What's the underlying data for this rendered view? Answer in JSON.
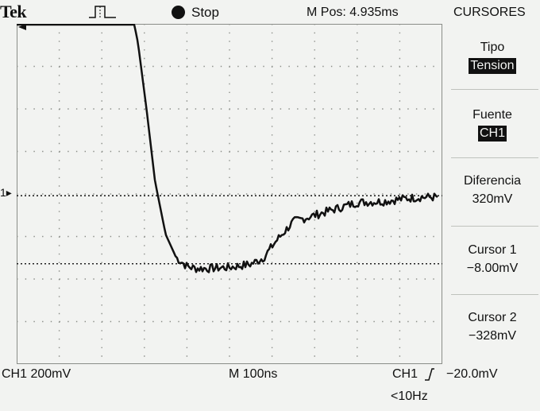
{
  "header": {
    "brand": "Tek",
    "status": "Stop",
    "m_pos": "M Pos: 4.935ms",
    "menu_title": "CURSORES"
  },
  "screen_markers": {
    "channel_marker": "1"
  },
  "side_menu": {
    "tipo": {
      "label": "Tipo",
      "value": "Tension"
    },
    "fuente": {
      "label": "Fuente",
      "value": "CH1"
    },
    "diferencia": {
      "label": "Diferencia",
      "value": "320mV"
    },
    "cursor1": {
      "label": "Cursor 1",
      "value": "−8.00mV"
    },
    "cursor2": {
      "label": "Cursor 2",
      "value": "−328mV"
    }
  },
  "footer": {
    "ch1_scale": "CH1  200mV",
    "timebase": "M 100ns",
    "trigger_source": "CH1",
    "trigger_level": "−20.0mV",
    "freq": "<10Hz"
  },
  "colors": {
    "background": "#f2f3f1",
    "trace": "#111111",
    "graticule": "#8a8d88"
  },
  "chart_data": {
    "type": "line",
    "title": "",
    "xlabel": "",
    "ylabel": "",
    "x_unit": "ns",
    "y_unit": "mV",
    "x_per_div": 100,
    "y_per_div": 200,
    "xlim": [
      -500,
      500
    ],
    "grid": true,
    "cursors_mV": [
      -8,
      -328
    ],
    "series": [
      {
        "x": [
          -500,
          -400,
          -300,
          -225,
          -215,
          -195,
          -175,
          -150,
          -125,
          -100,
          -80,
          -50,
          0,
          50,
          80,
          110,
          150,
          200,
          250,
          300,
          360,
          420,
          450
        ],
        "y": [
          810,
          810,
          810,
          810,
          710,
          400,
          60,
          -190,
          -300,
          -340,
          -350,
          -350,
          -345,
          -330,
          -300,
          -220,
          -130,
          -100,
          -70,
          -40,
          -35,
          -20,
          -15
        ]
      }
    ]
  }
}
